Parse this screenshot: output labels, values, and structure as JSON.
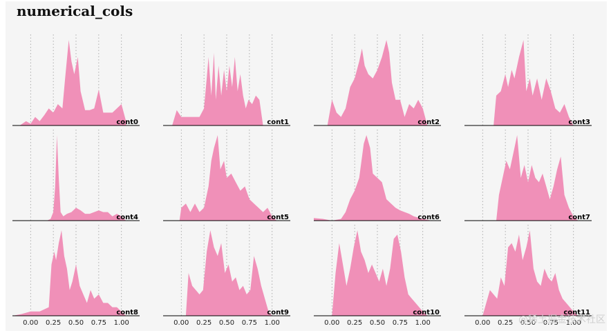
{
  "watermark": "@稀土掘金技术社区",
  "chart_data": {
    "type": "area",
    "title": "numerical_cols",
    "xlim": [
      -0.2,
      1.2
    ],
    "xticks": [
      0.0,
      0.25,
      0.5,
      0.75,
      1.0
    ],
    "xtick_labels": [
      "0.00",
      "0.25",
      "0.50",
      "0.75",
      "1.00"
    ],
    "grid_x": "dotted",
    "fill_color": "#f090b8",
    "layout": {
      "rows": 3,
      "cols": 4
    },
    "panels": [
      {
        "name": "cont0",
        "x": [
          -0.12,
          -0.05,
          0.0,
          0.05,
          0.1,
          0.15,
          0.2,
          0.25,
          0.3,
          0.35,
          0.38,
          0.42,
          0.45,
          0.48,
          0.52,
          0.55,
          0.6,
          0.65,
          0.7,
          0.75,
          0.8,
          0.85,
          0.9,
          0.95,
          1.0,
          1.05
        ],
        "y": [
          0,
          0.05,
          0.02,
          0.1,
          0.05,
          0.12,
          0.2,
          0.15,
          0.25,
          0.2,
          0.55,
          1.0,
          0.75,
          0.6,
          0.8,
          0.4,
          0.18,
          0.18,
          0.2,
          0.42,
          0.15,
          0.15,
          0.15,
          0.2,
          0.25,
          0.05
        ]
      },
      {
        "name": "cont1",
        "x": [
          -0.1,
          -0.05,
          0.0,
          0.05,
          0.1,
          0.15,
          0.2,
          0.25,
          0.28,
          0.3,
          0.33,
          0.36,
          0.38,
          0.41,
          0.44,
          0.47,
          0.5,
          0.53,
          0.56,
          0.59,
          0.62,
          0.65,
          0.68,
          0.71,
          0.74,
          0.78,
          0.82,
          0.86,
          0.9
        ],
        "y": [
          0,
          0.18,
          0.1,
          0.1,
          0.1,
          0.1,
          0.1,
          0.2,
          0.55,
          0.8,
          0.35,
          0.85,
          0.3,
          0.7,
          0.35,
          0.65,
          0.4,
          0.7,
          0.45,
          0.8,
          0.4,
          0.6,
          0.35,
          0.2,
          0.3,
          0.25,
          0.35,
          0.3,
          0.0
        ]
      },
      {
        "name": "cont2",
        "x": [
          -0.05,
          0.0,
          0.05,
          0.1,
          0.15,
          0.2,
          0.25,
          0.3,
          0.33,
          0.36,
          0.4,
          0.45,
          0.5,
          0.55,
          0.6,
          0.63,
          0.66,
          0.7,
          0.75,
          0.8,
          0.85,
          0.9,
          0.95,
          1.0,
          1.05
        ],
        "y": [
          0,
          0.3,
          0.15,
          0.1,
          0.2,
          0.45,
          0.55,
          0.75,
          0.9,
          0.7,
          0.6,
          0.55,
          0.65,
          0.8,
          1.0,
          0.85,
          0.5,
          0.3,
          0.3,
          0.1,
          0.25,
          0.2,
          0.3,
          0.2,
          0.0
        ]
      },
      {
        "name": "cont3",
        "x": [
          0.12,
          0.15,
          0.2,
          0.25,
          0.28,
          0.32,
          0.35,
          0.4,
          0.45,
          0.48,
          0.52,
          0.55,
          0.6,
          0.65,
          0.7,
          0.75,
          0.8,
          0.85,
          0.9,
          0.95,
          1.0
        ],
        "y": [
          0,
          0.35,
          0.4,
          0.6,
          0.45,
          0.65,
          0.55,
          0.8,
          1.0,
          0.4,
          0.55,
          0.35,
          0.55,
          0.3,
          0.55,
          0.4,
          0.2,
          0.15,
          0.25,
          0.1,
          0.0
        ]
      },
      {
        "name": "cont4",
        "x": [
          0.18,
          0.22,
          0.25,
          0.27,
          0.29,
          0.31,
          0.33,
          0.36,
          0.4,
          0.45,
          0.5,
          0.55,
          0.6,
          0.65,
          0.7,
          0.75,
          0.8,
          0.85,
          0.9,
          0.95,
          1.0,
          1.05
        ],
        "y": [
          0,
          0.02,
          0.1,
          0.4,
          1.0,
          0.5,
          0.1,
          0.05,
          0.08,
          0.1,
          0.15,
          0.12,
          0.08,
          0.08,
          0.1,
          0.12,
          0.1,
          0.1,
          0.05,
          0.08,
          0.05,
          0.0
        ]
      },
      {
        "name": "cont5",
        "x": [
          -0.02,
          0.0,
          0.05,
          0.1,
          0.15,
          0.2,
          0.25,
          0.3,
          0.33,
          0.36,
          0.4,
          0.43,
          0.47,
          0.5,
          0.55,
          0.6,
          0.65,
          0.7,
          0.75,
          0.8,
          0.85,
          0.9,
          0.95,
          1.0,
          1.05
        ],
        "y": [
          0,
          0.15,
          0.2,
          0.1,
          0.2,
          0.1,
          0.15,
          0.4,
          0.7,
          0.85,
          1.0,
          0.6,
          0.7,
          0.5,
          0.55,
          0.45,
          0.35,
          0.4,
          0.25,
          0.2,
          0.15,
          0.1,
          0.15,
          0.05,
          0.0
        ]
      },
      {
        "name": "cont6",
        "x": [
          -0.2,
          -0.1,
          0.0,
          0.1,
          0.15,
          0.2,
          0.25,
          0.3,
          0.35,
          0.38,
          0.42,
          0.45,
          0.5,
          0.55,
          0.6,
          0.65,
          0.7,
          0.75,
          0.8,
          0.85,
          0.9,
          1.0,
          1.1
        ],
        "y": [
          0.03,
          0.02,
          0.0,
          0.02,
          0.1,
          0.25,
          0.35,
          0.5,
          0.9,
          1.0,
          0.85,
          0.55,
          0.5,
          0.45,
          0.25,
          0.2,
          0.15,
          0.12,
          0.1,
          0.08,
          0.05,
          0.02,
          0.0
        ]
      },
      {
        "name": "cont7",
        "x": [
          0.15,
          0.18,
          0.22,
          0.26,
          0.3,
          0.34,
          0.38,
          0.42,
          0.46,
          0.5,
          0.54,
          0.58,
          0.62,
          0.66,
          0.7,
          0.74,
          0.78,
          0.82,
          0.86,
          0.9,
          0.95,
          1.0,
          1.05
        ],
        "y": [
          0,
          0.3,
          0.5,
          0.7,
          0.6,
          0.8,
          1.0,
          0.5,
          0.65,
          0.45,
          0.65,
          0.5,
          0.45,
          0.55,
          0.4,
          0.25,
          0.4,
          0.6,
          0.75,
          0.3,
          0.15,
          0.05,
          0.0
        ]
      },
      {
        "name": "cont8",
        "x": [
          -0.2,
          -0.1,
          0.0,
          0.1,
          0.2,
          0.23,
          0.26,
          0.28,
          0.31,
          0.34,
          0.37,
          0.4,
          0.43,
          0.46,
          0.5,
          0.54,
          0.58,
          0.62,
          0.66,
          0.7,
          0.75,
          0.8,
          0.85,
          0.9,
          0.95,
          1.0,
          1.05
        ],
        "y": [
          0,
          0.02,
          0.05,
          0.05,
          0.1,
          0.6,
          0.75,
          0.65,
          0.85,
          1.0,
          0.7,
          0.55,
          0.3,
          0.4,
          0.6,
          0.35,
          0.25,
          0.15,
          0.3,
          0.2,
          0.25,
          0.15,
          0.15,
          0.1,
          0.1,
          0.05,
          0.0
        ]
      },
      {
        "name": "cont9",
        "x": [
          0.05,
          0.08,
          0.12,
          0.16,
          0.2,
          0.24,
          0.28,
          0.32,
          0.36,
          0.4,
          0.44,
          0.48,
          0.52,
          0.56,
          0.6,
          0.64,
          0.68,
          0.72,
          0.76,
          0.8,
          0.84,
          0.88,
          0.92,
          0.96,
          1.0
        ],
        "y": [
          0,
          0.5,
          0.35,
          0.3,
          0.25,
          0.3,
          0.75,
          1.0,
          0.8,
          0.7,
          0.85,
          0.5,
          0.6,
          0.4,
          0.45,
          0.3,
          0.35,
          0.25,
          0.3,
          0.7,
          0.55,
          0.35,
          0.2,
          0.05,
          0.0
        ]
      },
      {
        "name": "cont10",
        "x": [
          0.0,
          0.04,
          0.08,
          0.12,
          0.16,
          0.2,
          0.24,
          0.28,
          0.32,
          0.36,
          0.4,
          0.44,
          0.48,
          0.52,
          0.56,
          0.6,
          0.64,
          0.68,
          0.72,
          0.76,
          0.8,
          0.84,
          0.88,
          0.92,
          0.96,
          1.0,
          1.05
        ],
        "y": [
          0,
          0.5,
          0.85,
          0.6,
          0.35,
          0.55,
          0.8,
          1.0,
          0.75,
          0.65,
          0.5,
          0.6,
          0.5,
          0.4,
          0.55,
          0.35,
          0.55,
          0.9,
          0.95,
          0.75,
          0.45,
          0.25,
          0.2,
          0.15,
          0.1,
          0.05,
          0.0
        ]
      },
      {
        "name": "cont11",
        "x": [
          0.0,
          0.04,
          0.08,
          0.12,
          0.16,
          0.2,
          0.24,
          0.28,
          0.32,
          0.36,
          0.4,
          0.44,
          0.48,
          0.52,
          0.56,
          0.6,
          0.64,
          0.68,
          0.72,
          0.76,
          0.8,
          0.84,
          0.88,
          0.92,
          0.96,
          1.0,
          1.05
        ],
        "y": [
          0,
          0.15,
          0.3,
          0.25,
          0.2,
          0.45,
          0.35,
          0.8,
          0.85,
          0.75,
          0.95,
          0.65,
          0.8,
          1.0,
          0.55,
          0.4,
          0.35,
          0.55,
          0.45,
          0.4,
          0.5,
          0.3,
          0.2,
          0.15,
          0.1,
          0.05,
          0.0
        ]
      }
    ]
  }
}
